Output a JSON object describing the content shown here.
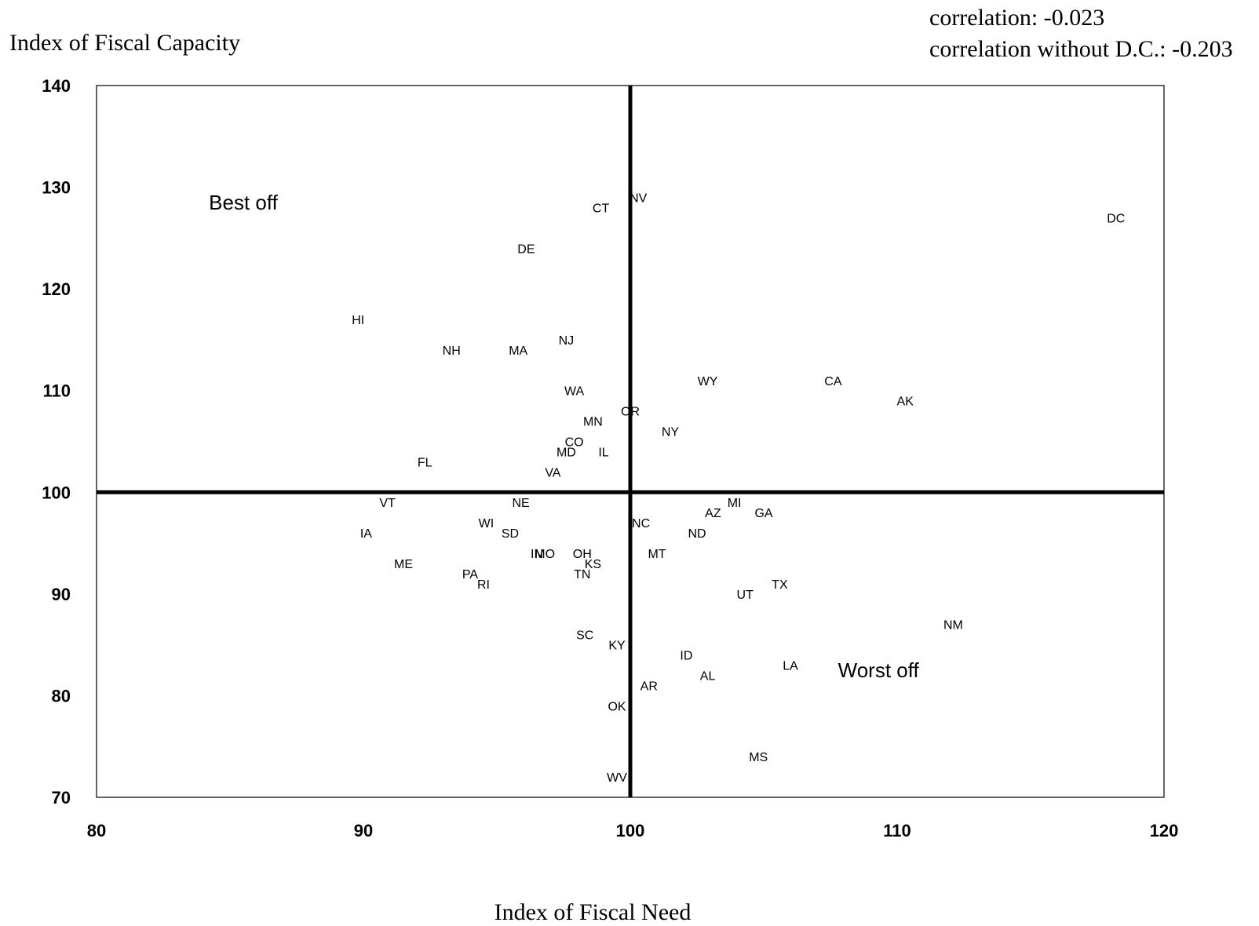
{
  "chart_data": {
    "type": "scatter",
    "ylabel": "Index of Fiscal Capacity",
    "xlabel": "Index of Fiscal Need",
    "correlation_label": "correlation: -0.023",
    "correlation_no_dc_label": "correlation without D.C.: -0.203",
    "xlim": [
      80,
      120
    ],
    "ylim": [
      70,
      140
    ],
    "x_ticks": [
      "80",
      "90",
      "100",
      "110",
      "120"
    ],
    "y_ticks": [
      "70",
      "80",
      "90",
      "100",
      "110",
      "120",
      "130",
      "140"
    ],
    "reference_lines": {
      "x": 100,
      "y": 100
    },
    "grid": false,
    "annotations": [
      {
        "text": "Best off",
        "x": 85.5,
        "y": 128.5
      },
      {
        "text": "Worst off",
        "x": 109.3,
        "y": 82.5
      }
    ],
    "points": [
      {
        "label": "NV",
        "x": 100.3,
        "y": 129
      },
      {
        "label": "CT",
        "x": 98.9,
        "y": 128
      },
      {
        "label": "DC",
        "x": 118.2,
        "y": 127
      },
      {
        "label": "DE",
        "x": 96.1,
        "y": 124
      },
      {
        "label": "HI",
        "x": 89.8,
        "y": 117
      },
      {
        "label": "NJ",
        "x": 97.6,
        "y": 115
      },
      {
        "label": "NH",
        "x": 93.3,
        "y": 114
      },
      {
        "label": "MA",
        "x": 95.8,
        "y": 114
      },
      {
        "label": "WY",
        "x": 102.9,
        "y": 111
      },
      {
        "label": "CA",
        "x": 107.6,
        "y": 111
      },
      {
        "label": "AK",
        "x": 110.3,
        "y": 109
      },
      {
        "label": "WA",
        "x": 97.9,
        "y": 110
      },
      {
        "label": "OR",
        "x": 100.0,
        "y": 108
      },
      {
        "label": "MN",
        "x": 98.6,
        "y": 107
      },
      {
        "label": "NY",
        "x": 101.5,
        "y": 106
      },
      {
        "label": "CO",
        "x": 97.9,
        "y": 105
      },
      {
        "label": "MD",
        "x": 97.6,
        "y": 104
      },
      {
        "label": "IL",
        "x": 99.0,
        "y": 104
      },
      {
        "label": "FL",
        "x": 92.3,
        "y": 103
      },
      {
        "label": "VA",
        "x": 97.1,
        "y": 102
      },
      {
        "label": "VT",
        "x": 90.9,
        "y": 99
      },
      {
        "label": "NE",
        "x": 95.9,
        "y": 99
      },
      {
        "label": "MI",
        "x": 103.9,
        "y": 99
      },
      {
        "label": "AZ",
        "x": 103.1,
        "y": 98
      },
      {
        "label": "GA",
        "x": 105.0,
        "y": 98
      },
      {
        "label": "WI",
        "x": 94.6,
        "y": 97
      },
      {
        "label": "NC",
        "x": 100.4,
        "y": 97
      },
      {
        "label": "IA",
        "x": 90.1,
        "y": 96
      },
      {
        "label": "SD",
        "x": 95.5,
        "y": 96
      },
      {
        "label": "ND",
        "x": 102.5,
        "y": 96
      },
      {
        "label": "IN",
        "x": 96.5,
        "y": 94
      },
      {
        "label": "MO",
        "x": 96.8,
        "y": 94
      },
      {
        "label": "OH",
        "x": 98.2,
        "y": 94
      },
      {
        "label": "MT",
        "x": 101.0,
        "y": 94
      },
      {
        "label": "KS",
        "x": 98.6,
        "y": 93
      },
      {
        "label": "ME",
        "x": 91.5,
        "y": 93
      },
      {
        "label": "PA",
        "x": 94.0,
        "y": 92
      },
      {
        "label": "TN",
        "x": 98.2,
        "y": 92
      },
      {
        "label": "RI",
        "x": 94.5,
        "y": 91
      },
      {
        "label": "TX",
        "x": 105.6,
        "y": 91
      },
      {
        "label": "UT",
        "x": 104.3,
        "y": 90
      },
      {
        "label": "NM",
        "x": 112.1,
        "y": 87
      },
      {
        "label": "SC",
        "x": 98.3,
        "y": 86
      },
      {
        "label": "KY",
        "x": 99.5,
        "y": 85
      },
      {
        "label": "ID",
        "x": 102.1,
        "y": 84
      },
      {
        "label": "LA",
        "x": 106.0,
        "y": 83
      },
      {
        "label": "AL",
        "x": 102.9,
        "y": 82
      },
      {
        "label": "AR",
        "x": 100.7,
        "y": 81
      },
      {
        "label": "OK",
        "x": 99.5,
        "y": 79
      },
      {
        "label": "MS",
        "x": 104.8,
        "y": 74
      },
      {
        "label": "WV",
        "x": 99.5,
        "y": 72
      }
    ]
  }
}
